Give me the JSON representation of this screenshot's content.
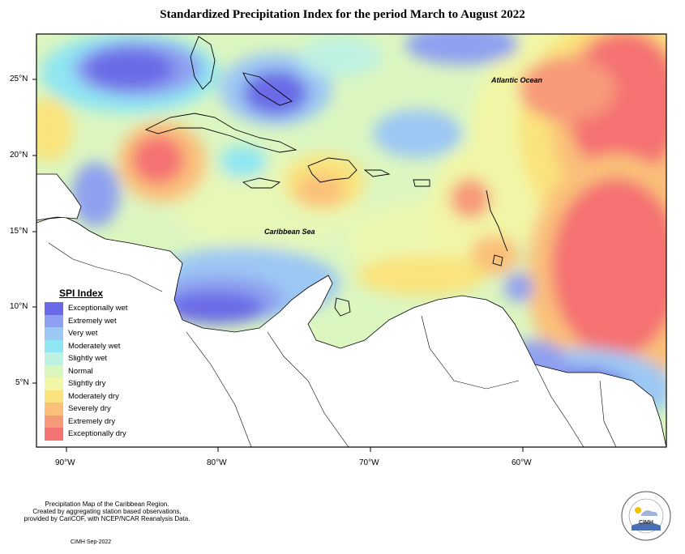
{
  "title": "Standardized Precipitation Index for the period March to August 2022",
  "map_labels": {
    "atlantic": "Atlantic Ocean",
    "caribbean": "Caribbean Sea"
  },
  "axes": {
    "lat_ticks": [
      "25°N",
      "20°N",
      "15°N",
      "10°N",
      "5°N"
    ],
    "lon_ticks": [
      "90°W",
      "80°W",
      "70°W",
      "60°W"
    ]
  },
  "legend": {
    "title": "SPI Index",
    "items": [
      {
        "label": "Exceptionally wet",
        "color": "#6a6ae6"
      },
      {
        "label": "Extremely wet",
        "color": "#8fa0f0"
      },
      {
        "label": "Very wet",
        "color": "#9cc8f4"
      },
      {
        "label": "Moderately wet",
        "color": "#8fe6f2"
      },
      {
        "label": "Slightly wet",
        "color": "#bdf2e2"
      },
      {
        "label": "Normal",
        "color": "#dcf6c0"
      },
      {
        "label": "Slightly dry",
        "color": "#f2f6a6"
      },
      {
        "label": "Moderately dry",
        "color": "#fae37c"
      },
      {
        "label": "Severely dry",
        "color": "#fac07a"
      },
      {
        "label": "Extremely dry",
        "color": "#f79a7a"
      },
      {
        "label": "Exceptionally dry",
        "color": "#f47272"
      }
    ]
  },
  "credit": {
    "line1": "Precipitation Map of the Caribbean Region.",
    "line2": "Created by aggregating station based observations,",
    "line3": "provided by CariCOF, with NCEP/NCAR Reanalysis Data."
  },
  "date_text": "CIMH Sep-2022",
  "logo_text": "CIMH"
}
